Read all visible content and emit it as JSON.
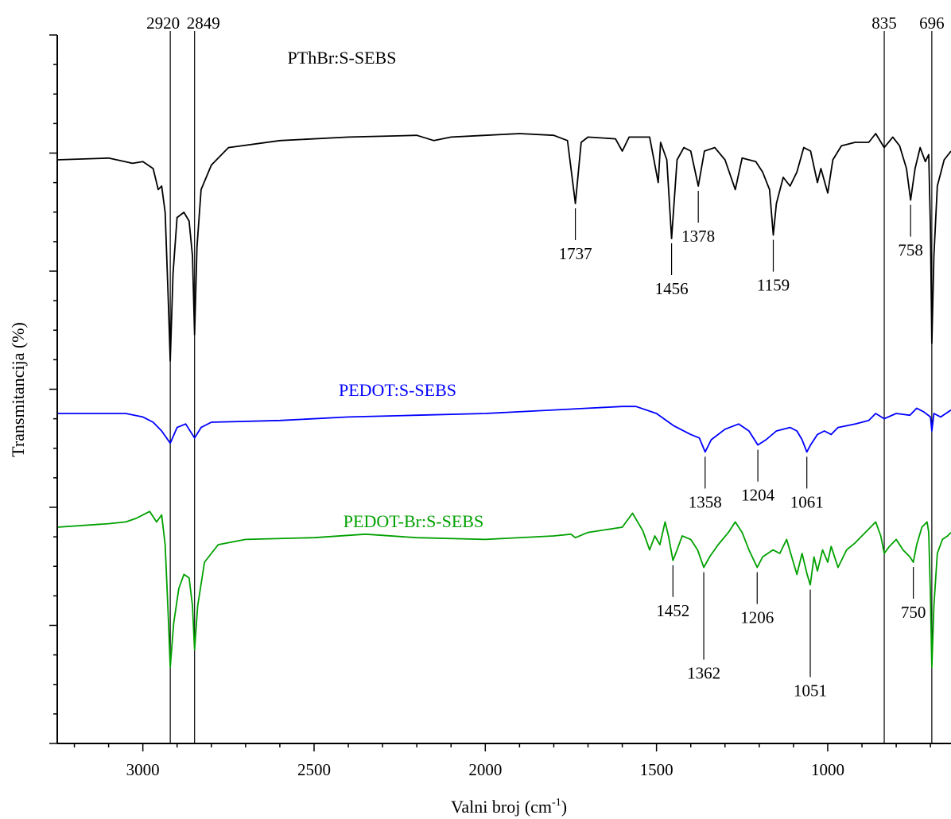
{
  "chart_data": {
    "type": "line",
    "xlabel": "Valni broj (cm",
    "xlabel_sup": "-1",
    "xlabel_end": ")",
    "ylabel": "Transmitancija (%)",
    "xlim": [
      3250,
      640
    ],
    "x_reversed": true,
    "x_ticks": [
      3000,
      2500,
      2000,
      1500,
      1000
    ],
    "y_tick_labels": false,
    "grid": false,
    "reference_lines": [
      2920,
      2849,
      835,
      696
    ],
    "reference_line_labels": [
      "2920",
      "2849",
      "835",
      "696"
    ],
    "series": [
      {
        "name": "PThBr:S-SEBS",
        "color": "#000000",
        "peaks": [
          {
            "x": 1737,
            "label": "1737"
          },
          {
            "x": 1456,
            "label": "1456"
          },
          {
            "x": 1378,
            "label": "1378"
          },
          {
            "x": 1159,
            "label": "1159"
          },
          {
            "x": 758,
            "label": "758"
          }
        ],
        "points": [
          [
            3250,
            0.55
          ],
          [
            3100,
            0.54
          ],
          [
            3030,
            0.57
          ],
          [
            3000,
            0.56
          ],
          [
            2970,
            0.6
          ],
          [
            2955,
            0.72
          ],
          [
            2945,
            0.7
          ],
          [
            2935,
            0.85
          ],
          [
            2925,
            1.4
          ],
          [
            2920,
            1.7
          ],
          [
            2912,
            1.2
          ],
          [
            2900,
            0.88
          ],
          [
            2880,
            0.85
          ],
          [
            2865,
            0.9
          ],
          [
            2855,
            1.1
          ],
          [
            2849,
            1.55
          ],
          [
            2842,
            1.05
          ],
          [
            2830,
            0.72
          ],
          [
            2800,
            0.58
          ],
          [
            2750,
            0.48
          ],
          [
            2600,
            0.44
          ],
          [
            2400,
            0.42
          ],
          [
            2200,
            0.41
          ],
          [
            2150,
            0.44
          ],
          [
            2100,
            0.42
          ],
          [
            2000,
            0.41
          ],
          [
            1900,
            0.4
          ],
          [
            1800,
            0.41
          ],
          [
            1760,
            0.44
          ],
          [
            1737,
            0.8
          ],
          [
            1720,
            0.45
          ],
          [
            1700,
            0.42
          ],
          [
            1620,
            0.43
          ],
          [
            1600,
            0.5
          ],
          [
            1580,
            0.42
          ],
          [
            1520,
            0.42
          ],
          [
            1495,
            0.68
          ],
          [
            1488,
            0.45
          ],
          [
            1470,
            0.55
          ],
          [
            1456,
            1.0
          ],
          [
            1440,
            0.55
          ],
          [
            1420,
            0.48
          ],
          [
            1400,
            0.5
          ],
          [
            1378,
            0.7
          ],
          [
            1360,
            0.5
          ],
          [
            1330,
            0.48
          ],
          [
            1300,
            0.55
          ],
          [
            1270,
            0.72
          ],
          [
            1250,
            0.54
          ],
          [
            1210,
            0.56
          ],
          [
            1190,
            0.62
          ],
          [
            1170,
            0.72
          ],
          [
            1159,
            0.98
          ],
          [
            1150,
            0.8
          ],
          [
            1130,
            0.65
          ],
          [
            1110,
            0.7
          ],
          [
            1090,
            0.62
          ],
          [
            1070,
            0.48
          ],
          [
            1050,
            0.5
          ],
          [
            1030,
            0.68
          ],
          [
            1020,
            0.6
          ],
          [
            1000,
            0.74
          ],
          [
            985,
            0.55
          ],
          [
            960,
            0.47
          ],
          [
            920,
            0.45
          ],
          [
            880,
            0.45
          ],
          [
            860,
            0.4
          ],
          [
            835,
            0.48
          ],
          [
            810,
            0.42
          ],
          [
            790,
            0.47
          ],
          [
            770,
            0.6
          ],
          [
            758,
            0.78
          ],
          [
            745,
            0.6
          ],
          [
            730,
            0.48
          ],
          [
            715,
            0.56
          ],
          [
            705,
            0.52
          ],
          [
            700,
            0.95
          ],
          [
            696,
            1.6
          ],
          [
            690,
            1.1
          ],
          [
            680,
            0.7
          ],
          [
            660,
            0.55
          ],
          [
            640,
            0.5
          ]
        ]
      },
      {
        "name": "PEDOT:S-SEBS",
        "color": "#0000ff",
        "peaks": [
          {
            "x": 1358,
            "label": "1358"
          },
          {
            "x": 1204,
            "label": "1204"
          },
          {
            "x": 1061,
            "label": "1061"
          }
        ],
        "points": [
          [
            3250,
            2.0
          ],
          [
            3050,
            2.0
          ],
          [
            3000,
            2.02
          ],
          [
            2970,
            2.05
          ],
          [
            2945,
            2.1
          ],
          [
            2920,
            2.17
          ],
          [
            2900,
            2.08
          ],
          [
            2875,
            2.06
          ],
          [
            2849,
            2.14
          ],
          [
            2830,
            2.08
          ],
          [
            2800,
            2.05
          ],
          [
            2600,
            2.04
          ],
          [
            2400,
            2.02
          ],
          [
            2200,
            2.01
          ],
          [
            2000,
            2.0
          ],
          [
            1800,
            1.98
          ],
          [
            1700,
            1.97
          ],
          [
            1600,
            1.96
          ],
          [
            1560,
            1.96
          ],
          [
            1500,
            2.0
          ],
          [
            1450,
            2.07
          ],
          [
            1400,
            2.12
          ],
          [
            1375,
            2.14
          ],
          [
            1358,
            2.22
          ],
          [
            1340,
            2.15
          ],
          [
            1300,
            2.09
          ],
          [
            1260,
            2.06
          ],
          [
            1230,
            2.1
          ],
          [
            1204,
            2.18
          ],
          [
            1180,
            2.15
          ],
          [
            1150,
            2.1
          ],
          [
            1110,
            2.08
          ],
          [
            1090,
            2.1
          ],
          [
            1075,
            2.15
          ],
          [
            1061,
            2.22
          ],
          [
            1050,
            2.18
          ],
          [
            1030,
            2.12
          ],
          [
            1010,
            2.1
          ],
          [
            990,
            2.12
          ],
          [
            970,
            2.08
          ],
          [
            920,
            2.06
          ],
          [
            880,
            2.04
          ],
          [
            860,
            2.0
          ],
          [
            835,
            2.03
          ],
          [
            800,
            2.0
          ],
          [
            760,
            2.01
          ],
          [
            740,
            1.97
          ],
          [
            720,
            1.99
          ],
          [
            700,
            2.02
          ],
          [
            696,
            2.1
          ],
          [
            690,
            2.0
          ],
          [
            670,
            2.02
          ],
          [
            640,
            1.98
          ]
        ]
      },
      {
        "name": "PEDOT-Br:S-SEBS",
        "color": "#00a000",
        "peaks": [
          {
            "x": 1452,
            "label": "1452"
          },
          {
            "x": 1362,
            "label": "1362"
          },
          {
            "x": 1206,
            "label": "1206"
          },
          {
            "x": 1051,
            "label": "1051"
          },
          {
            "x": 750,
            "label": "750"
          }
        ],
        "points": [
          [
            3250,
            2.65
          ],
          [
            3100,
            2.63
          ],
          [
            3050,
            2.62
          ],
          [
            3020,
            2.6
          ],
          [
            3000,
            2.58
          ],
          [
            2980,
            2.56
          ],
          [
            2960,
            2.62
          ],
          [
            2945,
            2.58
          ],
          [
            2935,
            2.75
          ],
          [
            2925,
            3.2
          ],
          [
            2920,
            3.45
          ],
          [
            2910,
            3.2
          ],
          [
            2895,
            3.0
          ],
          [
            2880,
            2.92
          ],
          [
            2865,
            2.94
          ],
          [
            2855,
            3.1
          ],
          [
            2849,
            3.35
          ],
          [
            2840,
            3.1
          ],
          [
            2820,
            2.85
          ],
          [
            2780,
            2.75
          ],
          [
            2700,
            2.72
          ],
          [
            2500,
            2.71
          ],
          [
            2350,
            2.69
          ],
          [
            2200,
            2.71
          ],
          [
            2000,
            2.72
          ],
          [
            1800,
            2.7
          ],
          [
            1750,
            2.69
          ],
          [
            1737,
            2.71
          ],
          [
            1700,
            2.68
          ],
          [
            1600,
            2.65
          ],
          [
            1570,
            2.57
          ],
          [
            1540,
            2.67
          ],
          [
            1520,
            2.78
          ],
          [
            1505,
            2.7
          ],
          [
            1490,
            2.75
          ],
          [
            1475,
            2.62
          ],
          [
            1465,
            2.7
          ],
          [
            1452,
            2.84
          ],
          [
            1440,
            2.78
          ],
          [
            1425,
            2.7
          ],
          [
            1400,
            2.72
          ],
          [
            1380,
            2.78
          ],
          [
            1362,
            2.88
          ],
          [
            1345,
            2.82
          ],
          [
            1320,
            2.75
          ],
          [
            1290,
            2.68
          ],
          [
            1270,
            2.62
          ],
          [
            1250,
            2.68
          ],
          [
            1230,
            2.78
          ],
          [
            1206,
            2.88
          ],
          [
            1190,
            2.82
          ],
          [
            1160,
            2.78
          ],
          [
            1140,
            2.8
          ],
          [
            1120,
            2.72
          ],
          [
            1105,
            2.82
          ],
          [
            1090,
            2.92
          ],
          [
            1075,
            2.8
          ],
          [
            1060,
            2.92
          ],
          [
            1051,
            2.98
          ],
          [
            1040,
            2.82
          ],
          [
            1030,
            2.9
          ],
          [
            1015,
            2.78
          ],
          [
            1000,
            2.85
          ],
          [
            990,
            2.76
          ],
          [
            970,
            2.88
          ],
          [
            945,
            2.78
          ],
          [
            920,
            2.74
          ],
          [
            900,
            2.7
          ],
          [
            880,
            2.66
          ],
          [
            860,
            2.62
          ],
          [
            845,
            2.7
          ],
          [
            835,
            2.8
          ],
          [
            820,
            2.76
          ],
          [
            800,
            2.72
          ],
          [
            780,
            2.78
          ],
          [
            760,
            2.82
          ],
          [
            750,
            2.85
          ],
          [
            740,
            2.75
          ],
          [
            725,
            2.65
          ],
          [
            710,
            2.62
          ],
          [
            705,
            2.68
          ],
          [
            700,
            3.05
          ],
          [
            696,
            3.45
          ],
          [
            690,
            3.1
          ],
          [
            680,
            2.8
          ],
          [
            665,
            2.72
          ],
          [
            650,
            2.7
          ],
          [
            640,
            2.68
          ]
        ]
      }
    ]
  }
}
